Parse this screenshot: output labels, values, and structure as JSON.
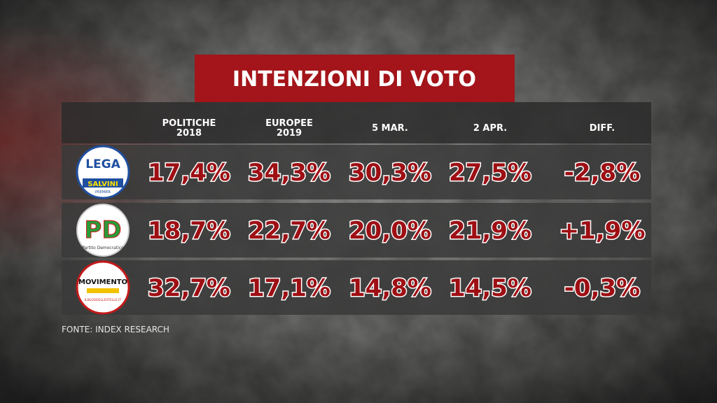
{
  "title": "INTENZIONI DI VOTO",
  "header": {
    "columns": [
      [
        "POLITICHE",
        "2018"
      ],
      [
        "EUROPEE",
        "2019"
      ],
      [
        "5 MAR."
      ],
      [
        "2 APR."
      ],
      [
        "DIFF."
      ]
    ]
  },
  "logos": [
    {
      "lines": [
        "LEGA",
        "SALVINI",
        "PREMIER"
      ]
    },
    {
      "lines": [
        "PD",
        "Partito Democratico"
      ]
    },
    {
      "lines": [
        "MOVIMENTO",
        "ILBLOGDELLESTELLE.IT"
      ]
    }
  ],
  "table": {
    "rows": [
      [
        "17,4%",
        "34,3%",
        "30,3%",
        "27,5%",
        "-2,8%"
      ],
      [
        "18,7%",
        "22,7%",
        "20,0%",
        "21,9%",
        "+1,9%"
      ],
      [
        "32,7%",
        "17,1%",
        "14,8%",
        "14,5%",
        "-0,3%"
      ]
    ]
  },
  "source": "FONTE: INDEX RESEARCH"
}
